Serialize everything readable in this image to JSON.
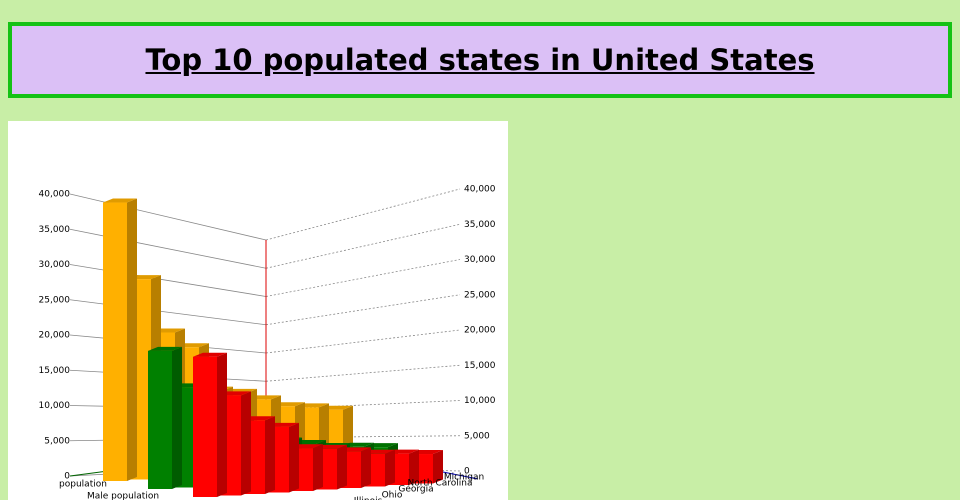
{
  "chart_data": {
    "type": "bar3d",
    "title": "Top 10 populated states in United States",
    "categories": [
      null,
      null,
      null,
      null,
      null,
      "Illinois",
      "Ohio",
      "Georgia",
      "North Carolina",
      "Michigan"
    ],
    "series": [
      {
        "name": "population",
        "color": "#ffb000",
        "values": [
          39500,
          29000,
          21500,
          19500,
          13000,
          12700,
          11700,
          10600,
          10400,
          10000
        ]
      },
      {
        "name": "Male population",
        "color": "#008000",
        "values": [
          19600,
          14500,
          10600,
          9600,
          6400,
          6300,
          5800,
          5200,
          5100,
          4900
        ]
      },
      {
        "color": "#ff0000",
        "values": [
          19900,
          14500,
          10900,
          9900,
          6600,
          6400,
          5900,
          5400,
          5300,
          5100
        ]
      }
    ],
    "ylim": [
      0,
      40000
    ],
    "yticks": [
      0,
      {
        "value": 5000,
        "label": "5,000"
      },
      {
        "value": 10000,
        "label": "10,000"
      },
      {
        "value": 15000,
        "label": "15,000"
      },
      {
        "value": 20000,
        "label": "20,000"
      },
      {
        "value": 25000,
        "label": "25,000"
      },
      {
        "value": 30000,
        "label": "30,000"
      },
      {
        "value": 35000,
        "label": "35,000"
      },
      {
        "value": 40000,
        "label": "40,000"
      }
    ],
    "grid": true
  }
}
